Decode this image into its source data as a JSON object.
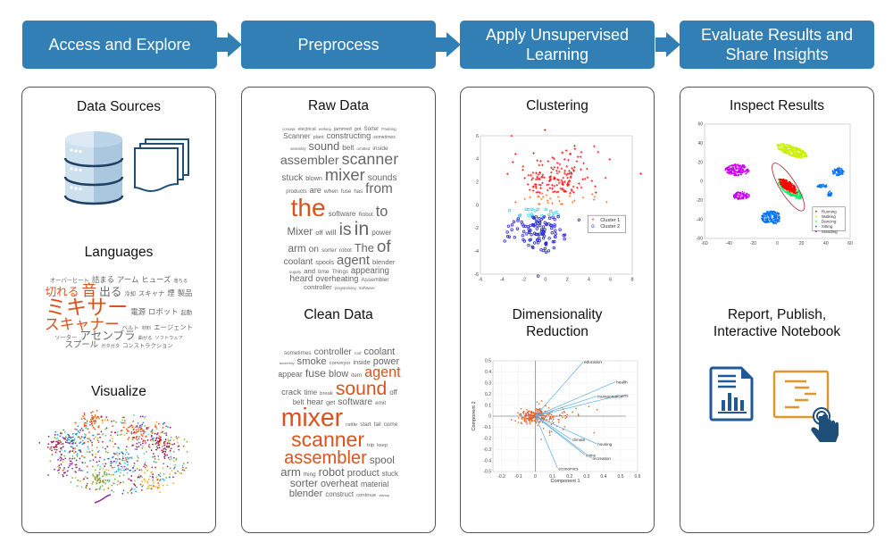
{
  "stages": [
    {
      "label": "Access and Explore"
    },
    {
      "label": "Preprocess"
    },
    {
      "label": "Apply Unsupervised Learning"
    },
    {
      "label": "Evaluate Results and Share Insights"
    }
  ],
  "colors": {
    "stage": "#317fb4",
    "accent": "#d9531e",
    "icon_blue": "#1f4e79",
    "icon_orange": "#e0962e"
  },
  "panel1": {
    "data_sources_title": "Data Sources",
    "icons": [
      "database-icon",
      "documents-icon"
    ],
    "languages_title": "Languages",
    "languages_words": [
      {
        "w": "オーバーヒート",
        "f": 3
      },
      {
        "w": "詰まる",
        "f": 4
      },
      {
        "w": "アーム",
        "f": 4
      },
      {
        "w": "ヒューズ",
        "f": 4
      },
      {
        "w": "落ちる",
        "f": 2.5
      },
      {
        "w": "切れる",
        "f": 6,
        "hot": true
      },
      {
        "w": "音",
        "f": 8,
        "hot": true
      },
      {
        "w": "出る",
        "f": 6
      },
      {
        "w": "冷却",
        "f": 3
      },
      {
        "w": "スキャナ",
        "f": 3.5
      },
      {
        "w": "煙",
        "f": 4
      },
      {
        "w": "製品",
        "f": 4
      },
      {
        "w": "ミキサー",
        "f": 11,
        "hot": true
      },
      {
        "w": "電源",
        "f": 4
      },
      {
        "w": "ロボット",
        "f": 4
      },
      {
        "w": "起動",
        "f": 3
      },
      {
        "w": "スキャナー",
        "f": 8,
        "hot": true
      },
      {
        "w": "ベルト",
        "f": 3
      },
      {
        "w": "材料",
        "f": 2.5
      },
      {
        "w": "エージェント",
        "f": 3.5
      },
      {
        "w": "ソーター",
        "f": 3
      },
      {
        "w": "アセンブラ",
        "f": 6
      },
      {
        "w": "曲がる",
        "f": 2.5
      },
      {
        "w": "ソフトウェア",
        "f": 2.5
      },
      {
        "w": "スプール",
        "f": 4.5
      },
      {
        "w": "ガタガタ",
        "f": 2.5
      },
      {
        "w": "コンストラクション",
        "f": 3
      }
    ],
    "visualize_title": "Visualize"
  },
  "panel2": {
    "raw_title": "Raw Data",
    "raw_words": [
      {
        "w": "concept",
        "f": 1.6
      },
      {
        "w": "electrical",
        "f": 2
      },
      {
        "w": "working",
        "f": 1.6
      },
      {
        "w": "jammed",
        "f": 2.2
      },
      {
        "w": "got",
        "f": 2.2
      },
      {
        "w": "Sorter",
        "f": 2.4
      },
      {
        "w": "Painting",
        "f": 1.8
      },
      {
        "w": "Scanner",
        "f": 3.2
      },
      {
        "w": "plant",
        "f": 2.2
      },
      {
        "w": "constructing",
        "f": 3.6
      },
      {
        "w": "sometimes",
        "f": 2
      },
      {
        "w": "assembly",
        "f": 1.6
      },
      {
        "w": "sound",
        "f": 5
      },
      {
        "w": "belt",
        "f": 3.2
      },
      {
        "w": "omitted",
        "f": 1.8
      },
      {
        "w": "inside",
        "f": 2.6
      },
      {
        "w": "assembler",
        "f": 5.6
      },
      {
        "w": "scanner",
        "f": 7
      },
      {
        "w": "stuck",
        "f": 4
      },
      {
        "w": "blown",
        "f": 2.8
      },
      {
        "w": "mixer",
        "f": 7.2
      },
      {
        "w": "sounds",
        "f": 4
      },
      {
        "w": "products",
        "f": 2.4
      },
      {
        "w": "are",
        "f": 3.6
      },
      {
        "w": "when",
        "f": 2.6
      },
      {
        "w": "fuse",
        "f": 2.4
      },
      {
        "w": "has",
        "f": 2.4
      },
      {
        "w": "from",
        "f": 6
      },
      {
        "w": "the",
        "f": 11,
        "hot": true
      },
      {
        "w": "software",
        "f": 3.2
      },
      {
        "w": "Robot",
        "f": 2.4
      },
      {
        "w": "to",
        "f": 6.4
      },
      {
        "w": "Mixer",
        "f": 4.6
      },
      {
        "w": "off",
        "f": 3
      },
      {
        "w": "will",
        "f": 3.4
      },
      {
        "w": "is",
        "f": 7.6
      },
      {
        "w": "in",
        "f": 8.4
      },
      {
        "w": "power",
        "f": 3.2
      },
      {
        "w": "arm",
        "f": 4.6
      },
      {
        "w": "on",
        "f": 4
      },
      {
        "w": "sorter",
        "f": 2.6
      },
      {
        "w": "robot",
        "f": 2.4
      },
      {
        "w": "The",
        "f": 5
      },
      {
        "w": "of",
        "f": 7.4
      },
      {
        "w": "coolant",
        "f": 4
      },
      {
        "w": "spools",
        "f": 2.8
      },
      {
        "w": "agent",
        "f": 5.8
      },
      {
        "w": "blender",
        "f": 3
      },
      {
        "w": "supply",
        "f": 1.8
      },
      {
        "w": "and",
        "f": 3
      },
      {
        "w": "time",
        "f": 2.6
      },
      {
        "w": "Things",
        "f": 2.4
      },
      {
        "w": "appearing",
        "f": 3.8
      },
      {
        "w": "heard",
        "f": 4
      },
      {
        "w": "overheating",
        "f": 3.6
      },
      {
        "w": "Assembler",
        "f": 2.6
      },
      {
        "w": "controller",
        "f": 3
      },
      {
        "w": "programming",
        "f": 1.6
      },
      {
        "w": "Software",
        "f": 1.8
      }
    ],
    "clean_title": "Clean Data",
    "clean_words": [
      {
        "w": "sometimes",
        "f": 2.6
      },
      {
        "w": "controller",
        "f": 4.2
      },
      {
        "w": "roof",
        "f": 1.8
      },
      {
        "w": "coolant",
        "f": 4.4
      },
      {
        "w": "assembly",
        "f": 1.6
      },
      {
        "w": "smoke",
        "f": 4.6
      },
      {
        "w": "conveyor",
        "f": 2.4
      },
      {
        "w": "inside",
        "f": 3
      },
      {
        "w": "power",
        "f": 4.4
      },
      {
        "w": "appear",
        "f": 3.6
      },
      {
        "w": "fuse",
        "f": 5
      },
      {
        "w": "blow",
        "f": 4.4
      },
      {
        "w": "item",
        "f": 2.6
      },
      {
        "w": "agent",
        "f": 6.6,
        "hot": true
      },
      {
        "w": "crack",
        "f": 3.8
      },
      {
        "w": "time",
        "f": 3.2
      },
      {
        "w": "break",
        "f": 2.4
      },
      {
        "w": "sound",
        "f": 8.6,
        "hot": true
      },
      {
        "w": "off",
        "f": 3.2
      },
      {
        "w": "belt",
        "f": 3.2
      },
      {
        "w": "hear",
        "f": 3.8
      },
      {
        "w": "get",
        "f": 3
      },
      {
        "w": "software",
        "f": 4.2
      },
      {
        "w": "emit",
        "f": 2.6
      },
      {
        "w": "mixer",
        "f": 11.6,
        "hot": true
      },
      {
        "w": "rattle",
        "f": 2.4
      },
      {
        "w": "start",
        "f": 2.6
      },
      {
        "w": "fail",
        "f": 2.6
      },
      {
        "w": "come",
        "f": 2.6
      },
      {
        "w": "scanner",
        "f": 9.4,
        "hot": true
      },
      {
        "w": "trip",
        "f": 2.4
      },
      {
        "w": "keep",
        "f": 2.2
      },
      {
        "w": "assembler",
        "f": 8.2,
        "hot": true
      },
      {
        "w": "spool",
        "f": 4.8
      },
      {
        "w": "arm",
        "f": 5.4
      },
      {
        "w": "thing",
        "f": 2.6
      },
      {
        "w": "robot",
        "f": 5.2
      },
      {
        "w": "product",
        "f": 4.4
      },
      {
        "w": "stuck",
        "f": 3.2
      },
      {
        "w": "sorter",
        "f": 5
      },
      {
        "w": "overheat",
        "f": 4.4
      },
      {
        "w": "material",
        "f": 3.6
      },
      {
        "w": "blender",
        "f": 4.6
      },
      {
        "w": "construct",
        "f": 3.2
      },
      {
        "w": "continue",
        "f": 2.4
      },
      {
        "w": "startup",
        "f": 1.6
      }
    ]
  },
  "panel3": {
    "clustering_title": "Clustering",
    "reduction_title_line1": "Dimensionality",
    "reduction_title_line2": "Reduction"
  },
  "panel4": {
    "inspect_title": "Inspect Results",
    "report_title_line1": "Report, Publish,",
    "report_title_line2": "Interactive Notebook",
    "icons": [
      "report-document-icon",
      "interactive-notebook-icon"
    ]
  },
  "chart_data": [
    {
      "type": "scatter",
      "title": "Clustering",
      "xlim": [
        -6,
        8
      ],
      "ylim": [
        -6,
        6
      ],
      "xticks": [
        "-6",
        "-4",
        "-2",
        "0",
        "2",
        "4",
        "6",
        "8"
      ],
      "yticks": [
        "-6",
        "-4",
        "-2",
        "0",
        "2",
        "4",
        "6"
      ],
      "legend_position": "right",
      "series": [
        {
          "name": "Cluster 1",
          "marker": "+",
          "color": "#ff2020",
          "center": [
            1,
            2.2
          ],
          "spread": [
            2,
            1.3
          ],
          "count": 190
        },
        {
          "name": "Cluster 2",
          "marker": "o",
          "color": "#2828e0",
          "center": [
            -0.6,
            -2.1
          ],
          "spread": [
            1.2,
            0.95
          ],
          "count": 130
        }
      ]
    },
    {
      "type": "scatter",
      "title": "Inspect Results",
      "xlim": [
        -60,
        60
      ],
      "ylim": [
        -60,
        60
      ],
      "xticks": [
        "-60",
        "-40",
        "-20",
        "0",
        "20",
        "40",
        "60"
      ],
      "yticks": [
        "-60",
        "-40",
        "-20",
        "0",
        "20",
        "40",
        "60"
      ],
      "legend_position": "bottom-right",
      "series": [
        {
          "name": "Running",
          "color": "#ff0000"
        },
        {
          "name": "Walking",
          "color": "#c8f000"
        },
        {
          "name": "Dancing",
          "color": "#00f060"
        },
        {
          "name": "Sitting",
          "color": "#0070ff"
        },
        {
          "name": "Standing",
          "color": "#c800f0"
        }
      ]
    },
    {
      "type": "biplot",
      "title": "Dimensionality Reduction",
      "xlabel": "Component 1",
      "ylabel": "Component 2",
      "xlim": [
        -0.25,
        0.6
      ],
      "ylim": [
        -0.5,
        0.5
      ],
      "xticks": [
        "-0.2",
        "-0.1",
        "0",
        "0.1",
        "0.2",
        "0.3",
        "0.4",
        "0.5",
        "0.6"
      ],
      "yticks": [
        "-0.5",
        "-0.4",
        "-0.3",
        "-0.2",
        "-0.1",
        "0",
        "0.1",
        "0.2",
        "0.3",
        "0.4",
        "0.5"
      ],
      "vectors": [
        {
          "name": "education",
          "x": 0.28,
          "y": 0.49
        },
        {
          "name": "health",
          "x": 0.47,
          "y": 0.31
        },
        {
          "name": "arts",
          "x": 0.5,
          "y": 0.19
        },
        {
          "name": "transportation",
          "x": 0.36,
          "y": 0.18
        },
        {
          "name": "climate",
          "x": 0.21,
          "y": -0.21
        },
        {
          "name": "housing",
          "x": 0.36,
          "y": -0.25
        },
        {
          "name": "crime",
          "x": 0.29,
          "y": -0.35
        },
        {
          "name": "recreation",
          "x": 0.33,
          "y": -0.38
        },
        {
          "name": "economics",
          "x": 0.13,
          "y": -0.47
        }
      ]
    }
  ]
}
